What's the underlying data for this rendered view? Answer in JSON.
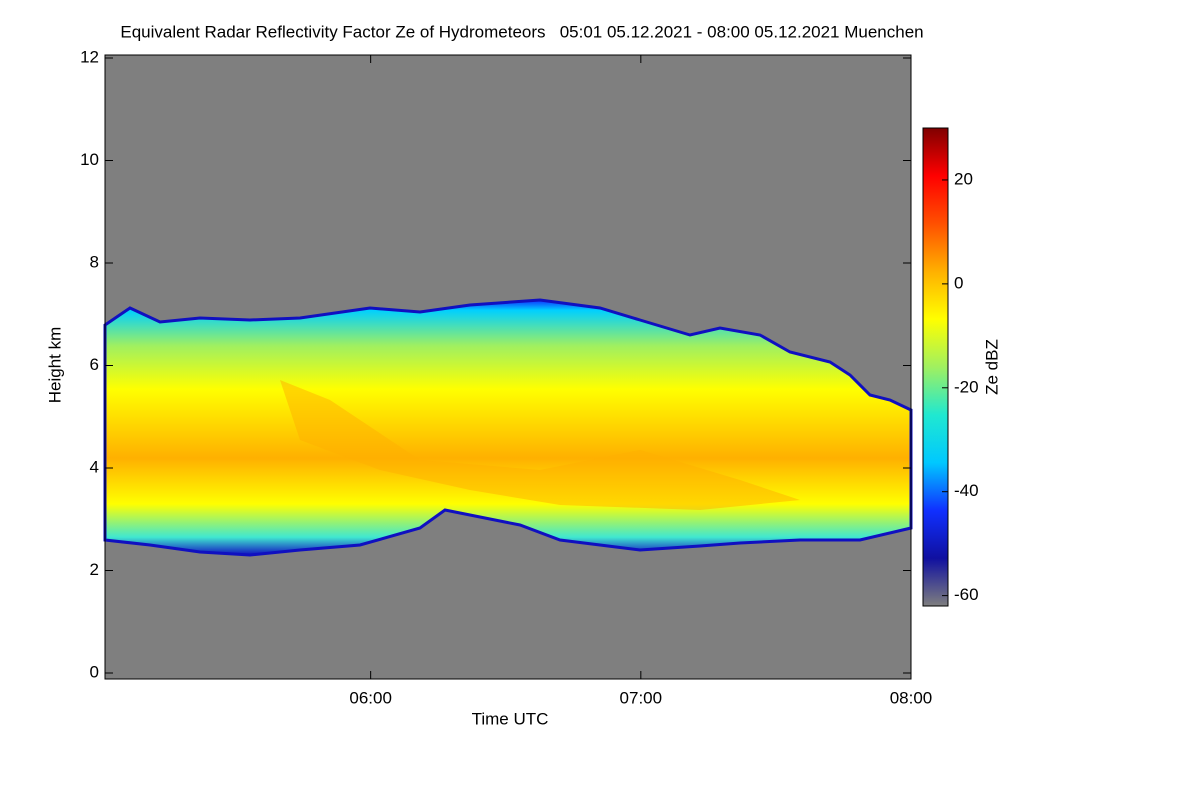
{
  "chart_data": {
    "type": "heatmap",
    "title": "Equivalent Radar Reflectivity Factor Ze of Hydrometeors   05:01 05.12.2021 - 08:00 05.12.2021 Muenchen",
    "xlabel": "Time UTC",
    "ylabel": "Height km",
    "colorbar_label": "Ze dBZ",
    "xlim": [
      5.0167,
      8
    ],
    "xticks": [
      {
        "value": 6,
        "label": "06:00"
      },
      {
        "value": 7,
        "label": "07:00"
      },
      {
        "value": 8,
        "label": "08:00"
      }
    ],
    "ylim": [
      0,
      12
    ],
    "yticks": [
      0,
      2,
      4,
      6,
      8,
      10,
      12
    ],
    "zlim": [
      -62,
      30
    ],
    "zticks": [
      -60,
      -40,
      -20,
      0,
      20
    ],
    "colormap": [
      "#7f7f7f",
      "#1010a0",
      "#1030ff",
      "#00c8ff",
      "#20e8d0",
      "#a0f060",
      "#ffff00",
      "#ffb000",
      "#ff5000",
      "#ff0000",
      "#800000"
    ]
  }
}
